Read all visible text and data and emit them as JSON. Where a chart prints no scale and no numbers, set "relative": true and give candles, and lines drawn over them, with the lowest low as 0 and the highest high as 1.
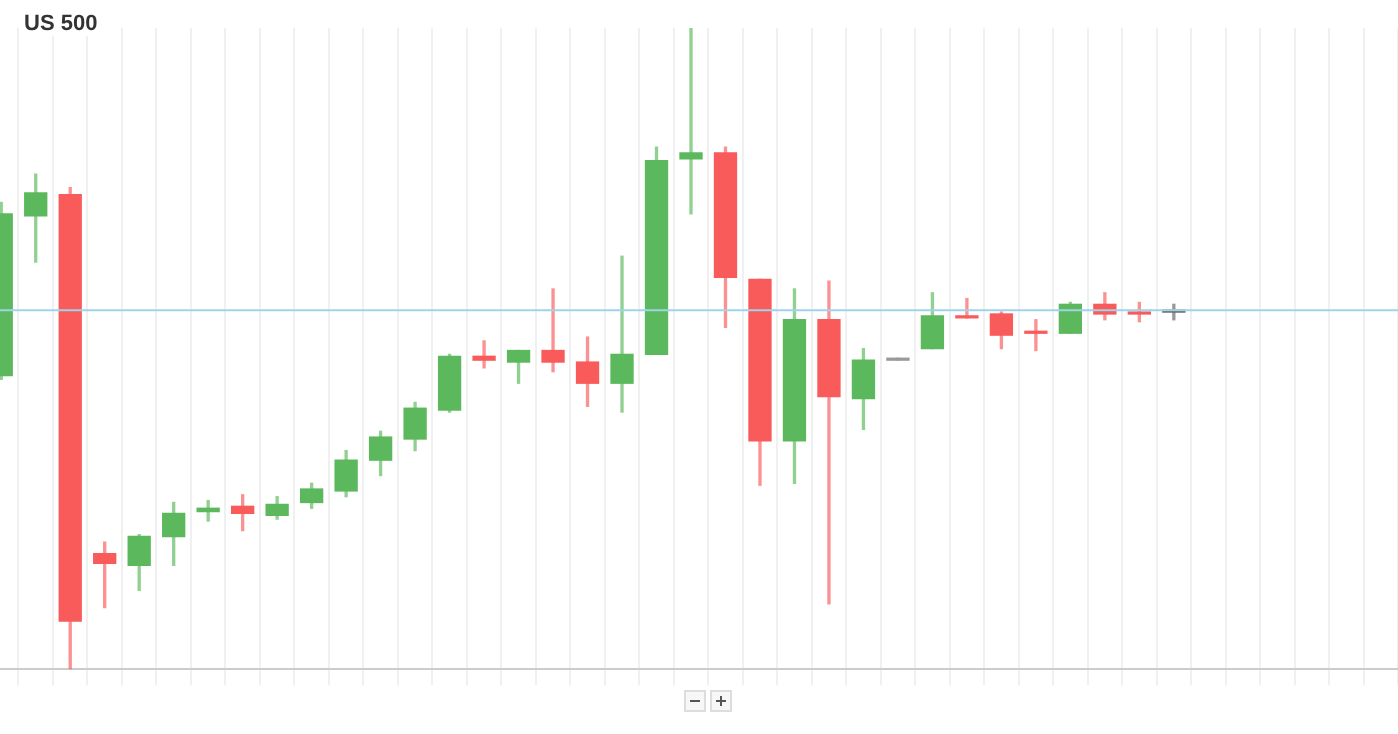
{
  "chart_data": {
    "type": "candlestick",
    "title": "US 500",
    "relative": true,
    "grid": "x",
    "legend": false,
    "categories": [
      null,
      null,
      null,
      null,
      null,
      null,
      null,
      null,
      null,
      null,
      null,
      null,
      null,
      null,
      null,
      null,
      null,
      null,
      null,
      null,
      null,
      null,
      null,
      null,
      null,
      null,
      null,
      null,
      null,
      null,
      null,
      null,
      null,
      null,
      null,
      null,
      null,
      null,
      null,
      null,
      null
    ],
    "ohlc": [
      [
        0.458,
        0.728,
        0.452,
        0.71
      ],
      [
        0.707,
        0.772,
        0.635,
        0.743
      ],
      [
        0.74,
        0.751,
        0,
        0.075
      ],
      [
        0.18,
        0.198,
        0.096,
        0.165
      ],
      [
        0.162,
        0.21,
        0.123,
        0.207
      ],
      [
        0.207,
        0.26,
        0.162,
        0.243
      ],
      [
        0.246,
        0.263,
        0.231,
        0.251
      ],
      [
        0.254,
        0.272,
        0.216,
        0.243
      ],
      [
        0.24,
        0.269,
        0.234,
        0.257
      ],
      [
        0.26,
        0.29,
        0.251,
        0.281
      ],
      [
        0.278,
        0.341,
        0.269,
        0.326
      ],
      [
        0.326,
        0.371,
        0.302,
        0.362
      ],
      [
        0.359,
        0.416,
        0.341,
        0.407
      ],
      [
        0.404,
        0.491,
        0.401,
        0.488
      ],
      [
        0.488,
        0.512,
        0.47,
        0.482
      ],
      [
        0.479,
        0.497,
        0.446,
        0.497
      ],
      [
        0.497,
        0.593,
        0.464,
        0.479
      ],
      [
        0.479,
        0.518,
        0.41,
        0.446
      ],
      [
        0.446,
        0.644,
        0.401,
        0.491
      ],
      [
        0.491,
        0.814,
        0.491,
        0.793
      ],
      [
        0.796,
        1,
        0.71,
        0.805
      ],
      [
        0.805,
        0.814,
        0.533,
        0.611
      ],
      [
        0.608,
        0.608,
        0.287,
        0.356
      ],
      [
        0.356,
        0.593,
        0.29,
        0.545
      ],
      [
        0.545,
        0.605,
        0.102,
        0.425
      ],
      [
        0.422,
        0.5,
        0.374,
        0.482
      ],
      [
        0.485,
        0.485,
        0.482,
        0.482
      ],
      [
        0.5,
        0.587,
        0.5,
        0.551
      ],
      [
        0.551,
        0.578,
        0.548,
        0.548
      ],
      [
        0.554,
        0.557,
        0.5,
        0.521
      ],
      [
        0.527,
        0.545,
        0.497,
        0.524
      ],
      [
        0.524,
        0.572,
        0.524,
        0.569
      ],
      [
        0.569,
        0.587,
        0.545,
        0.554
      ],
      [
        0.557,
        0.572,
        0.542,
        0.554
      ],
      [
        0.56,
        0.569,
        0.545,
        0.557
      ],
      null,
      null,
      null,
      null,
      null,
      null
    ],
    "colors": [
      "#5cb85c",
      "#5cb85c",
      "#f95a5a",
      "#f95a5a",
      "#5cb85c",
      "#5cb85c",
      "#5cb85c",
      "#f95a5a",
      "#5cb85c",
      "#5cb85c",
      "#5cb85c",
      "#5cb85c",
      "#5cb85c",
      "#5cb85c",
      "#f95a5a",
      "#5cb85c",
      "#f95a5a",
      "#f95a5a",
      "#5cb85c",
      "#5cb85c",
      "#5cb85c",
      "#f95a5a",
      "#f95a5a",
      "#5cb85c",
      "#f95a5a",
      "#5cb85c",
      "#999999",
      "#5cb85c",
      "#f95a5a",
      "#f95a5a",
      "#f95a5a",
      "#5cb85c",
      "#f95a5a",
      "#f95a5a",
      "#666666",
      null,
      null,
      null,
      null,
      null,
      null
    ],
    "ref_lines": [
      {
        "axis": "y",
        "value": 0.56,
        "color": "#9fd3ea"
      }
    ]
  }
}
